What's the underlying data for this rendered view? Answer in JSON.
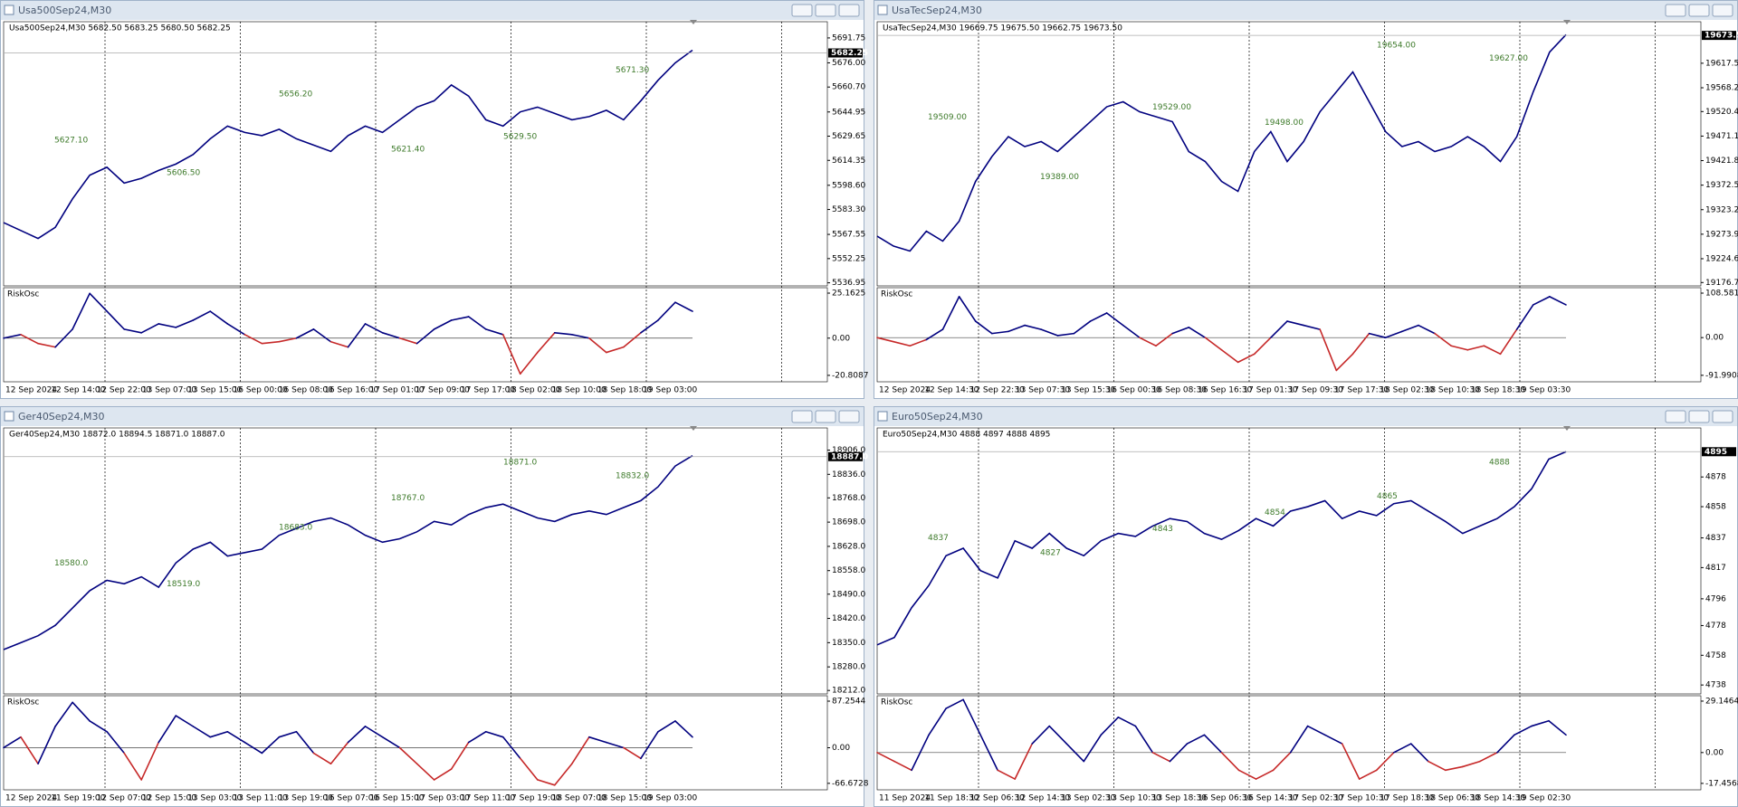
{
  "windows": [
    {
      "title": "Usa500Sep24,M30",
      "header": "Usa500Sep24,M30  5682.50 5683.25 5680.50 5682.25",
      "ylim": [
        5535,
        5702
      ],
      "yticks": [
        5691.75,
        {
          "value": 5676,
          "label": "5676.00"
        },
        {
          "value": 5660.7,
          "label": "5660.70"
        },
        5644.95,
        5629.65,
        5614.35,
        {
          "value": 5598.6,
          "label": "5598.60"
        },
        {
          "value": 5583.3,
          "label": "5583.30"
        },
        5567.55,
        5552.25,
        5536.95
      ],
      "current": 5682.25,
      "closes": [
        5575,
        5570,
        5565,
        5572,
        5590,
        5605,
        5610,
        5600,
        5603,
        5608,
        5612,
        5618,
        5628,
        5636,
        5632,
        5630,
        5634,
        5628,
        5624,
        5620,
        5630,
        5636,
        5632,
        5640,
        5648,
        5652,
        5662,
        5655,
        5640,
        5636,
        5645,
        5648,
        5644,
        5640,
        5642,
        5646,
        5640,
        5652,
        5665,
        5676,
        5684
      ],
      "annotations": [
        "5627.10",
        "5606.50",
        "5656.20",
        "5621.40",
        "5629.50",
        "5671.30"
      ],
      "osc": {
        "label": "RiskOsc",
        "ylim": [
          -24.4,
          28.2
        ],
        "yticks": [
          25.1625,
          {
            "value": 0,
            "label": "0.00"
          },
          -20.8087
        ],
        "values": [
          0,
          2,
          -3,
          -5,
          5,
          25,
          15,
          5,
          3,
          8,
          6,
          10,
          15,
          8,
          2,
          -3,
          -2,
          0,
          5,
          -2,
          -5,
          8,
          3,
          0,
          -3,
          5,
          10,
          12,
          5,
          2,
          -20,
          -8,
          3,
          2,
          0,
          -8,
          -5,
          3,
          10,
          20,
          15
        ]
      },
      "times": [
        "12 Sep 2024",
        "12 Sep 14:00",
        "12 Sep 22:00",
        "13 Sep 07:00",
        "13 Sep 15:00",
        "16 Sep 00:00",
        "16 Sep 08:00",
        "16 Sep 16:00",
        "17 Sep 01:00",
        "17 Sep 09:00",
        "17 Sep 17:00",
        "18 Sep 02:00",
        "18 Sep 10:00",
        "18 Sep 18:00",
        "19 Sep 03:00"
      ]
    },
    {
      "title": "UsaTecSep24,M30",
      "header": "UsaTecSep24,M30  19669.75 19675.50 19662.75 19673.50",
      "ylim": [
        19170,
        19701
      ],
      "yticks": [
        19617.55,
        19568.25,
        {
          "value": 19520.4,
          "label": "19520.40"
        },
        {
          "value": 19471.1,
          "label": "19471.10"
        },
        {
          "value": 19421.8,
          "label": "19421.80"
        },
        {
          "value": 19372.5,
          "label": "19372.50"
        },
        {
          "value": 19323.2,
          "label": "19323.20"
        },
        {
          "value": 19273.9,
          "label": "19273.90"
        },
        {
          "value": 19224.6,
          "label": "19224.60"
        },
        19176.75
      ],
      "current": {
        "value": 19673.5,
        "label": "19673.50"
      },
      "closes": [
        19270,
        19250,
        19240,
        19280,
        19260,
        19300,
        19380,
        19430,
        19470,
        19450,
        19460,
        19440,
        19470,
        19500,
        19530,
        19540,
        19520,
        19510,
        19500,
        19440,
        19420,
        19380,
        19360,
        19440,
        19480,
        19420,
        19460,
        19520,
        19560,
        19600,
        19540,
        19480,
        19450,
        19460,
        19440,
        19450,
        19470,
        19450,
        19420,
        19470,
        19560,
        19640,
        19675
      ],
      "annotations": [
        "19509.00",
        "19389.00",
        "19529.00",
        "19498.00",
        "19654.00",
        "19627.00"
      ],
      "osc": {
        "label": "RiskOsc",
        "ylim": [
          -107.8,
          121.8
        ],
        "yticks": [
          108.5819,
          {
            "value": 0,
            "label": "0.00"
          },
          -91.9908
        ],
        "values": [
          0,
          -10,
          -20,
          -5,
          20,
          100,
          40,
          10,
          15,
          30,
          20,
          5,
          10,
          40,
          60,
          30,
          0,
          -20,
          10,
          25,
          0,
          -30,
          -60,
          -40,
          0,
          40,
          30,
          20,
          -80,
          -40,
          10,
          0,
          15,
          30,
          10,
          -20,
          -30,
          -20,
          -40,
          20,
          80,
          100,
          80
        ]
      },
      "times": [
        "12 Sep 2024",
        "12 Sep 14:30",
        "12 Sep 22:30",
        "13 Sep 07:30",
        "13 Sep 15:30",
        "16 Sep 00:30",
        "16 Sep 08:30",
        "16 Sep 16:30",
        "17 Sep 01:30",
        "17 Sep 09:30",
        "17 Sep 17:30",
        "18 Sep 02:30",
        "18 Sep 10:30",
        "18 Sep 18:30",
        "19 Sep 03:30"
      ]
    },
    {
      "title": "Ger40Sep24,M30",
      "header": "Ger40Sep24,M30  18872.0 18894.5 18871.0 18887.0",
      "ylim": [
        18202,
        18970
      ],
      "yticks": [
        {
          "value": 18906,
          "label": "18906.0"
        },
        {
          "value": 18836,
          "label": "18836.0"
        },
        {
          "value": 18768,
          "label": "18768.0"
        },
        {
          "value": 18698,
          "label": "18698.0"
        },
        {
          "value": 18628,
          "label": "18628.0"
        },
        {
          "value": 18558,
          "label": "18558.0"
        },
        {
          "value": 18490,
          "label": "18490.0"
        },
        {
          "value": 18420,
          "label": "18420.0"
        },
        {
          "value": 18350,
          "label": "18350.0"
        },
        {
          "value": 18280,
          "label": "18280.0"
        },
        {
          "value": 18212,
          "label": "18212.0"
        }
      ],
      "current": {
        "value": 18887,
        "label": "18887.0"
      },
      "closes": [
        18330,
        18350,
        18370,
        18400,
        18450,
        18500,
        18530,
        18520,
        18540,
        18510,
        18580,
        18620,
        18640,
        18600,
        18610,
        18620,
        18660,
        18680,
        18700,
        18710,
        18690,
        18660,
        18640,
        18650,
        18670,
        18700,
        18690,
        18720,
        18740,
        18750,
        18730,
        18710,
        18700,
        18720,
        18730,
        18720,
        18740,
        18760,
        18800,
        18860,
        18890
      ],
      "annotations": [
        "18580.0",
        "18519.0",
        "18683.0",
        "18767.0",
        "18871.0",
        "18832.0"
      ],
      "osc": {
        "label": "RiskOsc",
        "ylim": [
          -78.8,
          97.4
        ],
        "yticks": [
          87.2544,
          {
            "value": 0,
            "label": "0.00"
          },
          -66.6728
        ],
        "values": [
          0,
          20,
          -30,
          40,
          85,
          50,
          30,
          -10,
          -60,
          10,
          60,
          40,
          20,
          30,
          10,
          -10,
          20,
          30,
          -10,
          -30,
          10,
          40,
          20,
          0,
          -30,
          -60,
          -40,
          10,
          30,
          20,
          -20,
          -60,
          -70,
          -30,
          20,
          10,
          0,
          -20,
          30,
          50,
          20
        ]
      },
      "times": [
        "12 Sep 2024",
        "11 Sep 19:00",
        "12 Sep 07:00",
        "12 Sep 15:00",
        "13 Sep 03:00",
        "13 Sep 11:00",
        "13 Sep 19:00",
        "16 Sep 07:00",
        "16 Sep 15:00",
        "17 Sep 03:00",
        "17 Sep 11:00",
        "17 Sep 19:00",
        "18 Sep 07:00",
        "18 Sep 15:00",
        "19 Sep 03:00"
      ]
    },
    {
      "title": "Euro50Sep24,M30",
      "header": "Euro50Sep24,M30  4888 4897 4888 4895",
      "ylim": [
        4732,
        4911
      ],
      "yticks": [
        4878,
        4858,
        4837,
        4817,
        4796,
        4778,
        4758,
        4738
      ],
      "current": 4895,
      "closes": [
        4765,
        4770,
        4790,
        4805,
        4825,
        4830,
        4815,
        4810,
        4835,
        4830,
        4840,
        4830,
        4825,
        4835,
        4840,
        4838,
        4845,
        4850,
        4848,
        4840,
        4836,
        4842,
        4850,
        4845,
        4855,
        4858,
        4862,
        4850,
        4855,
        4852,
        4860,
        4862,
        4855,
        4848,
        4840,
        4845,
        4850,
        4858,
        4870,
        4890,
        4895
      ],
      "annotations": [
        "4837",
        "4827",
        "4843",
        "4854",
        "4865",
        "4888"
      ],
      "osc": {
        "label": "RiskOsc",
        "ylim": [
          -21.1,
          32.2
        ],
        "yticks": [
          29.1464,
          {
            "value": 0,
            "label": "0.00"
          },
          -17.4568
        ],
        "values": [
          0,
          -5,
          -10,
          10,
          25,
          30,
          10,
          -10,
          -15,
          5,
          15,
          5,
          -5,
          10,
          20,
          15,
          0,
          -5,
          5,
          10,
          0,
          -10,
          -15,
          -10,
          0,
          15,
          10,
          5,
          -15,
          -10,
          0,
          5,
          -5,
          -10,
          -8,
          -5,
          0,
          10,
          15,
          18,
          10
        ]
      },
      "times": [
        "11 Sep 2024",
        "11 Sep 18:30",
        "12 Sep 06:30",
        "12 Sep 14:30",
        "13 Sep 02:30",
        "13 Sep 10:30",
        "13 Sep 18:30",
        "16 Sep 06:30",
        "16 Sep 14:30",
        "17 Sep 02:30",
        "17 Sep 10:30",
        "17 Sep 18:30",
        "18 Sep 06:30",
        "18 Sep 14:30",
        "19 Sep 02:30"
      ]
    }
  ]
}
